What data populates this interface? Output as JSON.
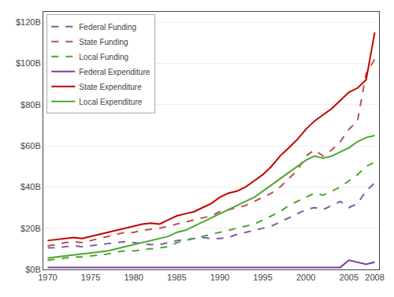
{
  "chart_data": {
    "type": "line",
    "x": [
      1970,
      1971,
      1972,
      1973,
      1974,
      1975,
      1976,
      1977,
      1978,
      1979,
      1980,
      1981,
      1982,
      1983,
      1984,
      1985,
      1986,
      1987,
      1988,
      1989,
      1990,
      1991,
      1992,
      1993,
      1994,
      1995,
      1996,
      1997,
      1998,
      1999,
      2000,
      2001,
      2002,
      2003,
      2004,
      2005,
      2006,
      2007,
      2008
    ],
    "series": [
      {
        "name": "Federal Funding",
        "color": "#7B5EA7",
        "line_style": "dashed",
        "values": [
          10.5,
          10.5,
          11.0,
          11.5,
          11.0,
          11.5,
          12.0,
          12.5,
          13.0,
          13.5,
          13.0,
          12.5,
          12.0,
          12.0,
          13.0,
          14.0,
          14.5,
          15.0,
          15.5,
          15.0,
          15.0,
          15.5,
          17.0,
          18.0,
          19.0,
          20.0,
          21.0,
          23.0,
          25.0,
          27.0,
          29.0,
          30.0,
          29.0,
          31.0,
          33.0,
          30.0,
          32.0,
          38.0,
          42.0
        ]
      },
      {
        "name": "State Funding",
        "color": "#B85450",
        "line_style": "dashed",
        "values": [
          11.5,
          12.0,
          13.0,
          13.5,
          13.0,
          14.0,
          15.0,
          16.0,
          17.0,
          18.0,
          18.0,
          19.0,
          19.5,
          20.0,
          21.0,
          22.0,
          23.0,
          24.0,
          25.0,
          26.0,
          28.0,
          29.0,
          30.0,
          31.0,
          33.0,
          35.0,
          37.0,
          40.0,
          44.0,
          48.0,
          55.0,
          58.0,
          55.0,
          58.0,
          62.0,
          68.0,
          72.0,
          95.0,
          102.0
        ]
      },
      {
        "name": "Local Funding",
        "color": "#4EA72C",
        "line_style": "dashed",
        "values": [
          4.5,
          5.0,
          5.5,
          6.0,
          6.0,
          6.5,
          7.0,
          7.5,
          8.5,
          9.0,
          9.0,
          9.5,
          10.0,
          10.5,
          11.0,
          13.0,
          14.0,
          15.0,
          16.0,
          17.0,
          18.0,
          19.0,
          20.0,
          21.0,
          22.0,
          24.0,
          26.0,
          28.0,
          31.0,
          33.0,
          35.0,
          37.0,
          36.0,
          38.0,
          40.0,
          43.0,
          46.0,
          50.0,
          52.0
        ]
      },
      {
        "name": "Federal Expenditure",
        "color": "#7B3F9E",
        "line_style": "solid",
        "values": [
          1.0,
          1.0,
          1.0,
          1.0,
          1.0,
          1.0,
          1.0,
          1.0,
          1.0,
          1.0,
          1.0,
          1.0,
          1.0,
          1.0,
          1.0,
          1.0,
          1.0,
          1.0,
          1.0,
          1.0,
          1.0,
          1.0,
          1.0,
          1.0,
          1.0,
          1.0,
          1.0,
          1.0,
          1.0,
          1.0,
          1.0,
          1.0,
          1.0,
          1.0,
          1.0,
          4.5,
          3.5,
          2.5,
          3.5
        ]
      },
      {
        "name": "State Expenditure",
        "color": "#C00000",
        "line_style": "solid",
        "values": [
          14.0,
          14.5,
          15.0,
          15.5,
          15.0,
          16.0,
          17.0,
          18.0,
          19.0,
          20.0,
          21.0,
          22.0,
          22.5,
          22.0,
          24.0,
          26.0,
          27.0,
          28.0,
          30.0,
          32.0,
          35.0,
          37.0,
          38.0,
          40.0,
          43.0,
          46.0,
          50.0,
          55.0,
          59.0,
          63.0,
          68.0,
          72.0,
          75.0,
          78.0,
          82.0,
          86.0,
          88.0,
          92.0,
          115.0
        ]
      },
      {
        "name": "Local Expenditure",
        "color": "#4EA72C",
        "line_style": "solid",
        "values": [
          5.5,
          6.0,
          6.5,
          7.0,
          7.5,
          8.0,
          8.5,
          9.0,
          10.0,
          11.0,
          12.0,
          13.0,
          14.0,
          15.0,
          16.0,
          18.0,
          19.0,
          21.0,
          23.0,
          25.0,
          27.0,
          29.0,
          31.0,
          33.0,
          35.0,
          38.0,
          41.0,
          44.0,
          47.0,
          50.0,
          53.0,
          55.0,
          54.0,
          55.0,
          57.0,
          59.0,
          62.0,
          64.0,
          65.0
        ]
      }
    ],
    "xlim": [
      1969.5,
      2008.5
    ],
    "xticks": [
      1970,
      1975,
      1980,
      1985,
      1990,
      1995,
      2000,
      2005,
      2008
    ],
    "ylim": [
      0,
      125
    ],
    "yticks": [
      {
        "value": 0,
        "label": "$0B"
      },
      {
        "value": 20,
        "label": "$20B"
      },
      {
        "value": 40,
        "label": "$40B"
      },
      {
        "value": 60,
        "label": "$60B"
      },
      {
        "value": 80,
        "label": "$80B"
      },
      {
        "value": 100,
        "label": "$100B"
      },
      {
        "value": 120,
        "label": "$120B"
      }
    ],
    "grid": "y",
    "legend": "upper left"
  }
}
